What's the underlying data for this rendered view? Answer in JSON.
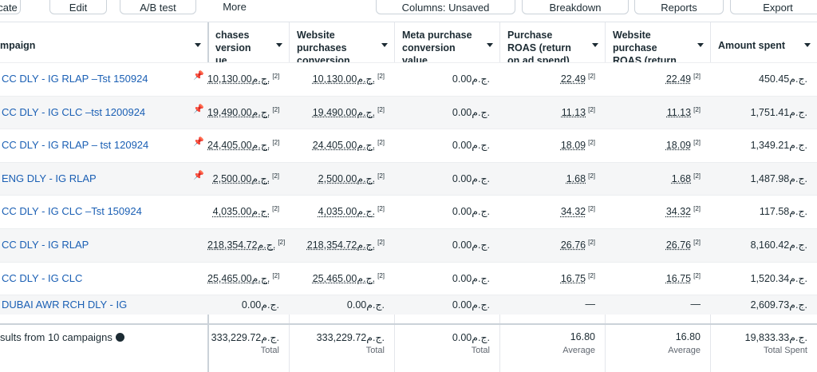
{
  "toolbar": {
    "buttons": [
      "plicate",
      "Edit",
      "A/B test",
      "More",
      "Columns: Unsaved",
      "Breakdown",
      "Reports",
      "Export"
    ]
  },
  "table": {
    "headers": [
      "mpaign",
      "chases version ue",
      "Website purchases conversion",
      "Meta purchase conversion value",
      "Purchase ROAS (return on ad spend)",
      "Website purchase ROAS (return on",
      "Amount spent"
    ],
    "rows": [
      {
        "campaign": "CC DLY - IG RLAP –Tst 150924",
        "pinned": true,
        "cells": [
          {
            "text": "10,130.00ج.م.",
            "note": "[2]"
          },
          {
            "text": "10,130.00ج.م.",
            "note": "[2]"
          },
          {
            "text": "0.00ج.م."
          },
          {
            "text": "22.49",
            "note": "[2]"
          },
          {
            "text": "22.49",
            "note": "[2]"
          },
          {
            "text": "450.45ج.م."
          }
        ]
      },
      {
        "campaign": "CC DLY - IG CLC –tst 1200924",
        "pinned": true,
        "cells": [
          {
            "text": "19,490.00ج.م.",
            "note": "[2]"
          },
          {
            "text": "19,490.00ج.م.",
            "note": "[2]"
          },
          {
            "text": "0.00ج.م."
          },
          {
            "text": "11.13",
            "note": "[2]"
          },
          {
            "text": "11.13",
            "note": "[2]"
          },
          {
            "text": "1,751.41ج.م."
          }
        ]
      },
      {
        "campaign": "CC DLY - IG RLAP – tst 120924",
        "pinned": true,
        "cells": [
          {
            "text": "24,405.00ج.م.",
            "note": "[2]"
          },
          {
            "text": "24,405.00ج.م.",
            "note": "[2]"
          },
          {
            "text": "0.00ج.م."
          },
          {
            "text": "18.09",
            "note": "[2]"
          },
          {
            "text": "18.09",
            "note": "[2]"
          },
          {
            "text": "1,349.21ج.م."
          }
        ]
      },
      {
        "campaign": "ENG DLY - IG RLAP",
        "pinned": true,
        "cells": [
          {
            "text": "2,500.00ج.م.",
            "note": "[2]"
          },
          {
            "text": "2,500.00ج.م.",
            "note": "[2]"
          },
          {
            "text": "0.00ج.م."
          },
          {
            "text": "1.68",
            "note": "[2]"
          },
          {
            "text": "1.68",
            "note": "[2]"
          },
          {
            "text": "1,487.98ج.م."
          }
        ]
      },
      {
        "campaign": "CC DLY - IG CLC –Tst 150924",
        "pinned": false,
        "cells": [
          {
            "text": "4,035.00ج.م.",
            "note": "[2]"
          },
          {
            "text": "4,035.00ج.م.",
            "note": "[2]"
          },
          {
            "text": "0.00ج.م."
          },
          {
            "text": "34.32",
            "note": "[2]"
          },
          {
            "text": "34.32",
            "note": "[2]"
          },
          {
            "text": "117.58ج.م."
          }
        ]
      },
      {
        "campaign": "CC DLY - IG RLAP",
        "pinned": false,
        "cells": [
          {
            "text": "218,354.72ج.م.",
            "note": "[2]"
          },
          {
            "text": "218,354.72ج.م.",
            "note": "[2]"
          },
          {
            "text": "0.00ج.م."
          },
          {
            "text": "26.76",
            "note": "[2]"
          },
          {
            "text": "26.76",
            "note": "[2]"
          },
          {
            "text": "8,160.42ج.م."
          }
        ]
      },
      {
        "campaign": "CC DLY - IG CLC",
        "pinned": false,
        "cells": [
          {
            "text": "25,465.00ج.م.",
            "note": "[2]"
          },
          {
            "text": "25,465.00ج.م.",
            "note": "[2]"
          },
          {
            "text": "0.00ج.م."
          },
          {
            "text": "16.75",
            "note": "[2]"
          },
          {
            "text": "16.75",
            "note": "[2]"
          },
          {
            "text": "1,520.34ج.م."
          }
        ]
      },
      {
        "campaign": "DUBAI AWR RCH DLY - IG",
        "pinned": false,
        "cells": [
          {
            "text": "0.00ج.م."
          },
          {
            "text": "0.00ج.م."
          },
          {
            "text": "0.00ج.م."
          },
          {
            "text": "—"
          },
          {
            "text": "—"
          },
          {
            "text": "2,609.73ج.م."
          }
        ]
      }
    ],
    "summary": {
      "label": "sults from 10 campaigns",
      "cells": [
        {
          "text": "333,229.72ج.م.",
          "sub": "Total"
        },
        {
          "text": "333,229.72ج.م.",
          "sub": "Total"
        },
        {
          "text": "0.00ج.م.",
          "sub": "Total"
        },
        {
          "text": "16.80",
          "sub": "Average"
        },
        {
          "text": "16.80",
          "sub": "Average"
        },
        {
          "text": "19,833.33ج.م.",
          "sub": "Total Spent"
        }
      ]
    }
  }
}
